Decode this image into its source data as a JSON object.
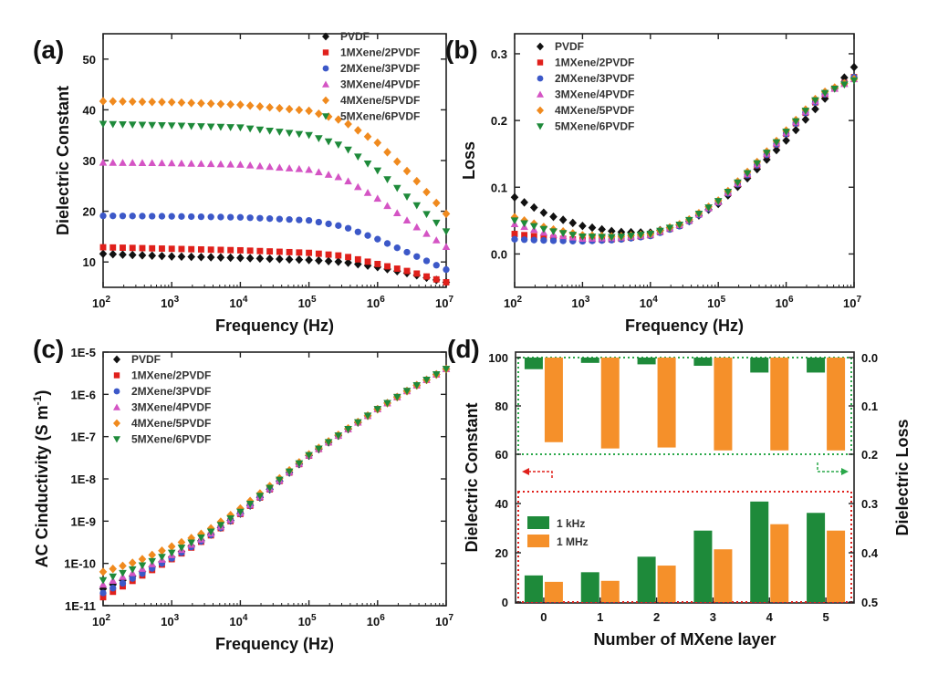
{
  "panel_labels": [
    "(a)",
    "(b)",
    "(c)",
    "(d)"
  ],
  "colors": {
    "PVDF": "#111111",
    "1MXene/2PVDF": "#e0201b",
    "2MXene/3PVDF": "#3c58c8",
    "3MXene/4PVDF": "#d454c4",
    "4MXene/5PVDF": "#f08a1e",
    "5MXene/6PVDF": "#1e8a3a",
    "kHz_bar": "#1e8a3a",
    "MHz_bar": "#f5902a",
    "red_dotted": "#e0201b",
    "green_dotted": "#2aa84a"
  },
  "chart_data": [
    {
      "panel": "(a)",
      "type": "scatter",
      "xlabel": "Frequency (Hz)",
      "ylabel": "Dielectric Constant",
      "xscale": "log",
      "xlim": [
        100,
        10000000
      ],
      "ylim": [
        5,
        55
      ],
      "x_ticks": [
        {
          "v": 100,
          "b": "10",
          "e": "2"
        },
        {
          "v": 1000,
          "b": "10",
          "e": "3"
        },
        {
          "v": 10000,
          "b": "10",
          "e": "4"
        },
        {
          "v": 100000,
          "b": "10",
          "e": "5"
        },
        {
          "v": 1000000,
          "b": "10",
          "e": "6"
        },
        {
          "v": 10000000,
          "b": "10",
          "e": "7"
        }
      ],
      "y_ticks": [
        {
          "v": 10,
          "t": "10"
        },
        {
          "v": 20,
          "t": "20"
        },
        {
          "v": 30,
          "t": "30"
        },
        {
          "v": 40,
          "t": "40"
        },
        {
          "v": 50,
          "t": "50"
        }
      ],
      "legend_position": "top-right",
      "series": [
        {
          "name": "PVDF",
          "marker": "diamond",
          "anchors": [
            [
              2,
              11.6
            ],
            [
              3,
              11.1
            ],
            [
              4,
              10.8
            ],
            [
              5,
              10.4
            ],
            [
              5.5,
              10.0
            ],
            [
              6,
              9.0
            ],
            [
              6.5,
              7.6
            ],
            [
              7,
              6.0
            ]
          ]
        },
        {
          "name": "1MXene/2PVDF",
          "marker": "square",
          "anchors": [
            [
              2,
              12.9
            ],
            [
              3,
              12.6
            ],
            [
              4,
              12.3
            ],
            [
              5,
              11.8
            ],
            [
              5.5,
              11.2
            ],
            [
              6,
              9.6
            ],
            [
              6.5,
              8.0
            ],
            [
              7,
              6.0
            ]
          ]
        },
        {
          "name": "2MXene/3PVDF",
          "marker": "circle",
          "anchors": [
            [
              2,
              19.1
            ],
            [
              3,
              19.0
            ],
            [
              4,
              18.8
            ],
            [
              5,
              18.2
            ],
            [
              5.5,
              17.0
            ],
            [
              6,
              14.5
            ],
            [
              6.5,
              11.5
            ],
            [
              7,
              8.5
            ]
          ]
        },
        {
          "name": "3MXene/4PVDF",
          "marker": "triangle-up",
          "anchors": [
            [
              2,
              29.6
            ],
            [
              3,
              29.5
            ],
            [
              4,
              29.2
            ],
            [
              5,
              28.2
            ],
            [
              5.5,
              26.5
            ],
            [
              6,
              22.5
            ],
            [
              6.5,
              17.5
            ],
            [
              7,
              13.0
            ]
          ]
        },
        {
          "name": "4MXene/5PVDF",
          "marker": "diamond",
          "anchors": [
            [
              2,
              41.7
            ],
            [
              3,
              41.5
            ],
            [
              4,
              41.0
            ],
            [
              5,
              39.8
            ],
            [
              5.5,
              37.8
            ],
            [
              6,
              33.5
            ],
            [
              6.5,
              27.0
            ],
            [
              7,
              19.5
            ]
          ]
        },
        {
          "name": "5MXene/6PVDF",
          "marker": "triangle-down",
          "anchors": [
            [
              2,
              37.2
            ],
            [
              3,
              36.9
            ],
            [
              4,
              36.5
            ],
            [
              5,
              35.0
            ],
            [
              5.5,
              32.8
            ],
            [
              6,
              28.0
            ],
            [
              6.5,
              22.0
            ],
            [
              7,
              16.0
            ]
          ]
        }
      ]
    },
    {
      "panel": "(b)",
      "type": "scatter",
      "xlabel": "Frequency (Hz)",
      "ylabel": "Loss",
      "xscale": "log",
      "xlim": [
        100,
        10000000
      ],
      "ylim": [
        -0.05,
        0.33
      ],
      "x_ticks": [
        {
          "v": 100,
          "b": "10",
          "e": "2"
        },
        {
          "v": 1000,
          "b": "10",
          "e": "3"
        },
        {
          "v": 10000,
          "b": "10",
          "e": "4"
        },
        {
          "v": 100000,
          "b": "10",
          "e": "5"
        },
        {
          "v": 1000000,
          "b": "10",
          "e": "6"
        },
        {
          "v": 10000000,
          "b": "10",
          "e": "7"
        }
      ],
      "y_ticks": [
        {
          "v": 0.0,
          "t": "0.0"
        },
        {
          "v": 0.1,
          "t": "0.1"
        },
        {
          "v": 0.2,
          "t": "0.2"
        },
        {
          "v": 0.3,
          "t": "0.3"
        }
      ],
      "legend_position": "top-left",
      "series": [
        {
          "name": "PVDF",
          "marker": "diamond",
          "anchors": [
            [
              2,
              0.085
            ],
            [
              2.5,
              0.058
            ],
            [
              3,
              0.042
            ],
            [
              3.5,
              0.033
            ],
            [
              4,
              0.032
            ],
            [
              4.5,
              0.045
            ],
            [
              5,
              0.075
            ],
            [
              5.5,
              0.12
            ],
            [
              6,
              0.17
            ],
            [
              6.5,
              0.225
            ],
            [
              7,
              0.28
            ]
          ]
        },
        {
          "name": "1MXene/2PVDF",
          "marker": "square",
          "anchors": [
            [
              2,
              0.03
            ],
            [
              2.5,
              0.024
            ],
            [
              3,
              0.021
            ],
            [
              3.5,
              0.022
            ],
            [
              4,
              0.028
            ],
            [
              4.5,
              0.045
            ],
            [
              5,
              0.078
            ],
            [
              5.5,
              0.125
            ],
            [
              6,
              0.18
            ],
            [
              6.5,
              0.235
            ],
            [
              7,
              0.265
            ]
          ]
        },
        {
          "name": "2MXene/3PVDF",
          "marker": "circle",
          "anchors": [
            [
              2,
              0.022
            ],
            [
              2.5,
              0.02
            ],
            [
              3,
              0.019
            ],
            [
              3.5,
              0.021
            ],
            [
              4,
              0.027
            ],
            [
              4.5,
              0.044
            ],
            [
              5,
              0.077
            ],
            [
              5.5,
              0.125
            ],
            [
              6,
              0.18
            ],
            [
              6.5,
              0.235
            ],
            [
              7,
              0.265
            ]
          ]
        },
        {
          "name": "3MXene/4PVDF",
          "marker": "triangle-up",
          "anchors": [
            [
              2,
              0.045
            ],
            [
              2.5,
              0.03
            ],
            [
              3,
              0.023
            ],
            [
              3.5,
              0.024
            ],
            [
              4,
              0.029
            ],
            [
              4.5,
              0.046
            ],
            [
              5,
              0.078
            ],
            [
              5.5,
              0.127
            ],
            [
              6,
              0.182
            ],
            [
              6.5,
              0.237
            ],
            [
              7,
              0.262
            ]
          ]
        },
        {
          "name": "4MXene/5PVDF",
          "marker": "diamond",
          "anchors": [
            [
              2,
              0.055
            ],
            [
              2.5,
              0.038
            ],
            [
              3,
              0.028
            ],
            [
              3.5,
              0.026
            ],
            [
              4,
              0.03
            ],
            [
              4.5,
              0.047
            ],
            [
              5,
              0.08
            ],
            [
              5.5,
              0.13
            ],
            [
              6,
              0.185
            ],
            [
              6.5,
              0.24
            ],
            [
              7,
              0.262
            ]
          ]
        },
        {
          "name": "5MXene/6PVDF",
          "marker": "triangle-down",
          "anchors": [
            [
              2,
              0.05
            ],
            [
              2.5,
              0.035
            ],
            [
              3,
              0.026
            ],
            [
              3.5,
              0.025
            ],
            [
              4,
              0.03
            ],
            [
              4.5,
              0.046
            ],
            [
              5,
              0.079
            ],
            [
              5.5,
              0.128
            ],
            [
              6,
              0.183
            ],
            [
              6.5,
              0.238
            ],
            [
              7,
              0.26
            ]
          ]
        }
      ]
    },
    {
      "panel": "(c)",
      "type": "scatter",
      "xlabel": "Frequency (Hz)",
      "ylabel": "AC Cinductivity (S m-1)",
      "ylabel_main": "AC Cinductivity (S m",
      "ylabel_sup": "-1",
      "ylabel_end": ")",
      "xscale": "log",
      "yscale": "log",
      "xlim": [
        100,
        10000000
      ],
      "ylim": [
        1e-11,
        1e-05
      ],
      "x_ticks": [
        {
          "v": 100,
          "b": "10",
          "e": "2"
        },
        {
          "v": 1000,
          "b": "10",
          "e": "3"
        },
        {
          "v": 10000,
          "b": "10",
          "e": "4"
        },
        {
          "v": 100000,
          "b": "10",
          "e": "5"
        },
        {
          "v": 1000000,
          "b": "10",
          "e": "6"
        },
        {
          "v": 10000000,
          "b": "10",
          "e": "7"
        }
      ],
      "y_ticks": [
        {
          "v": 1e-11,
          "t": "1E-11"
        },
        {
          "v": 1e-10,
          "t": "1E-10"
        },
        {
          "v": 1e-09,
          "t": "1E-9"
        },
        {
          "v": 1e-08,
          "t": "1E-8"
        },
        {
          "v": 1e-07,
          "t": "1E-7"
        },
        {
          "v": 1e-06,
          "t": "1E-6"
        },
        {
          "v": 1e-05,
          "t": "1E-5"
        }
      ],
      "legend_position": "top-left",
      "series": [
        {
          "name": "PVDF",
          "marker": "diamond",
          "anchors": [
            [
              2,
              -10.6
            ],
            [
              2.5,
              -10.25
            ],
            [
              3,
              -9.85
            ],
            [
              3.5,
              -9.4
            ],
            [
              4,
              -8.82
            ],
            [
              4.5,
              -8.15
            ],
            [
              5,
              -7.45
            ],
            [
              5.5,
              -6.9
            ],
            [
              6,
              -6.35
            ],
            [
              6.5,
              -5.85
            ],
            [
              7,
              -5.4
            ]
          ]
        },
        {
          "name": "1MXene/2PVDF",
          "marker": "square",
          "anchors": [
            [
              2,
              -10.8
            ],
            [
              2.5,
              -10.35
            ],
            [
              3,
              -9.9
            ],
            [
              3.5,
              -9.42
            ],
            [
              4,
              -8.83
            ],
            [
              4.5,
              -8.15
            ],
            [
              5,
              -7.45
            ],
            [
              5.5,
              -6.9
            ],
            [
              6,
              -6.35
            ],
            [
              6.5,
              -5.85
            ],
            [
              7,
              -5.4
            ]
          ]
        },
        {
          "name": "2MXene/3PVDF",
          "marker": "circle",
          "anchors": [
            [
              2,
              -10.7
            ],
            [
              2.5,
              -10.3
            ],
            [
              3,
              -9.88
            ],
            [
              3.5,
              -9.41
            ],
            [
              4,
              -8.82
            ],
            [
              4.5,
              -8.15
            ],
            [
              5,
              -7.45
            ],
            [
              5.5,
              -6.9
            ],
            [
              6,
              -6.35
            ],
            [
              6.5,
              -5.85
            ],
            [
              7,
              -5.4
            ]
          ]
        },
        {
          "name": "3MXene/4PVDF",
          "marker": "triangle-up",
          "anchors": [
            [
              2,
              -10.5
            ],
            [
              2.5,
              -10.18
            ],
            [
              3,
              -9.8
            ],
            [
              3.5,
              -9.37
            ],
            [
              4,
              -8.8
            ],
            [
              4.5,
              -8.13
            ],
            [
              5,
              -7.44
            ],
            [
              5.5,
              -6.9
            ],
            [
              6,
              -6.35
            ],
            [
              6.5,
              -5.85
            ],
            [
              7,
              -5.4
            ]
          ]
        },
        {
          "name": "4MXene/5PVDF",
          "marker": "diamond",
          "anchors": [
            [
              2,
              -10.2
            ],
            [
              2.5,
              -9.95
            ],
            [
              3,
              -9.6
            ],
            [
              3.5,
              -9.25
            ],
            [
              4,
              -8.7
            ],
            [
              4.5,
              -8.08
            ],
            [
              5,
              -7.42
            ],
            [
              5.5,
              -6.88
            ],
            [
              6,
              -6.35
            ],
            [
              6.5,
              -5.85
            ],
            [
              7,
              -5.4
            ]
          ]
        },
        {
          "name": "5MXene/6PVDF",
          "marker": "triangle-down",
          "anchors": [
            [
              2,
              -10.4
            ],
            [
              2.5,
              -10.1
            ],
            [
              3,
              -9.75
            ],
            [
              3.5,
              -9.33
            ],
            [
              4,
              -8.78
            ],
            [
              4.5,
              -8.12
            ],
            [
              5,
              -7.44
            ],
            [
              5.5,
              -6.9
            ],
            [
              6,
              -6.35
            ],
            [
              6.5,
              -5.85
            ],
            [
              7,
              -5.4
            ]
          ]
        }
      ]
    },
    {
      "panel": "(d)",
      "type": "bar",
      "xlabel": "Number of MXene layer",
      "ylabel_left": "Dielectric Constant",
      "ylabel_right": "Dielectric Loss",
      "categories": [
        "0",
        "1",
        "2",
        "3",
        "4",
        "5"
      ],
      "left_ticks": [
        "0",
        "20",
        "40",
        "60",
        "80",
        "100"
      ],
      "right_ticks": [
        "0.0",
        "0.1",
        "0.2",
        "0.3",
        "0.4",
        "0.5"
      ],
      "legend_position": "left, lower box",
      "constant_series": [
        {
          "name": "1 kHz",
          "values": [
            10.8,
            12.1,
            18.4,
            29.0,
            40.8,
            36.2
          ]
        },
        {
          "name": "1 MHz",
          "values": [
            8.2,
            8.6,
            14.8,
            21.4,
            31.6,
            29.0
          ]
        }
      ],
      "loss_series": [
        {
          "name": "1 kHz",
          "values": [
            0.024,
            0.011,
            0.014,
            0.017,
            0.031,
            0.031
          ]
        },
        {
          "name": "1 MHz",
          "values": [
            0.175,
            0.188,
            0.186,
            0.192,
            0.192,
            0.192
          ]
        }
      ]
    }
  ]
}
